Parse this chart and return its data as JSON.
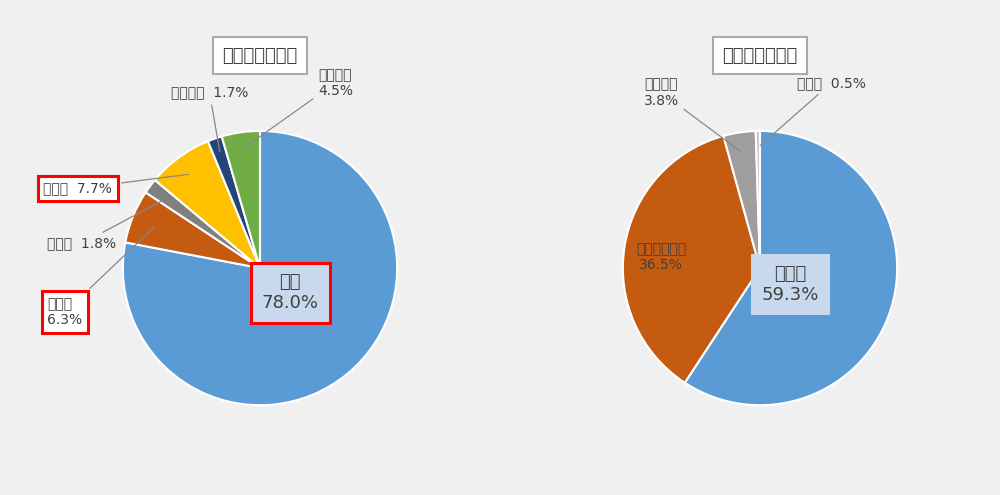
{
  "chart1_title": "収入決算の内訳",
  "chart2_title": "支出決算の内訳",
  "chart1_labels": [
    "学費",
    "手数料",
    "寄付金",
    "補助金",
    "付随事業",
    "雑収入他"
  ],
  "chart1_values": [
    78.0,
    6.3,
    1.8,
    7.7,
    1.7,
    4.5
  ],
  "chart1_colors": [
    "#5b9bd5",
    "#c55a11",
    "#808080",
    "#ffc000",
    "#264478",
    "#70ad47"
  ],
  "chart1_startangle": 90,
  "chart2_labels": [
    "人件費",
    "教育研究経費",
    "管理経費",
    "その他"
  ],
  "chart2_values": [
    59.3,
    36.5,
    3.8,
    0.5
  ],
  "chart2_colors": [
    "#5b9bd5",
    "#c55a11",
    "#9e9e9e",
    "#c8c8c8"
  ],
  "chart2_startangle": 90,
  "bg_color": "#f0f0f0",
  "label_color": "#404040",
  "font_size_label": 10,
  "font_size_title": 13,
  "font_size_inner": 12
}
